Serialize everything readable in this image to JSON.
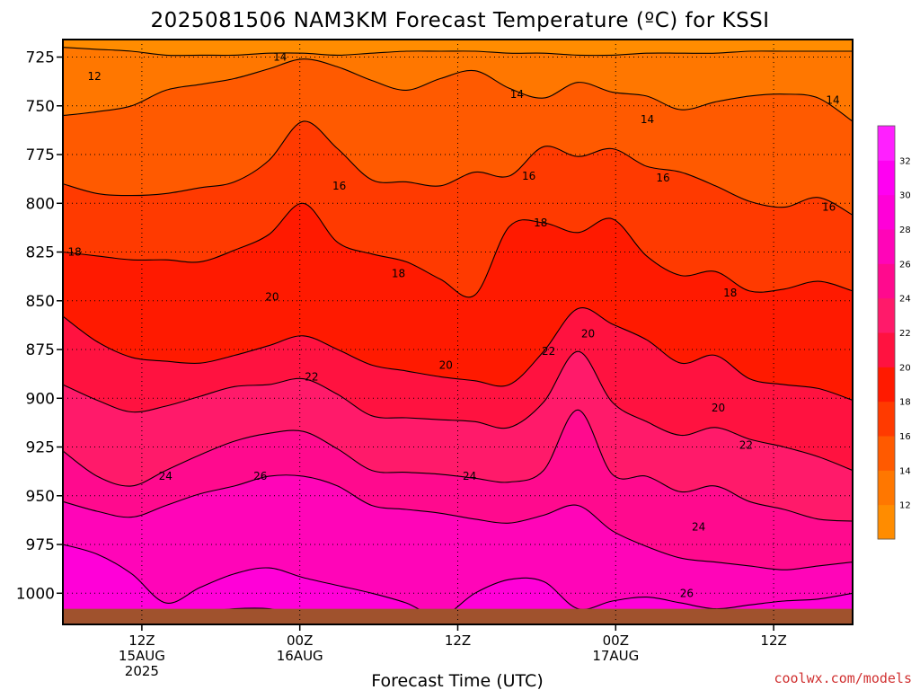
{
  "chart_data": {
    "type": "heatmap",
    "title": "2025081506 NAM3KM Forecast Temperature (ºC) for KSSI",
    "xlabel": "Forecast Time (UTC)",
    "ylabel": "",
    "y_axis": {
      "unit": "hPa",
      "reversed": true,
      "range": [
        1016,
        716
      ],
      "ticks": [
        725,
        750,
        775,
        800,
        825,
        850,
        875,
        900,
        925,
        950,
        975,
        1000
      ]
    },
    "x_axis": {
      "range_hours": [
        -10,
        90
      ],
      "ticks": [
        {
          "hour": 0,
          "lines": [
            "12Z",
            "15AUG",
            "2025"
          ]
        },
        {
          "hour": 20,
          "lines": [
            "00Z",
            "16AUG"
          ]
        },
        {
          "hour": 40,
          "lines": [
            "12Z"
          ]
        },
        {
          "hour": 60,
          "lines": [
            "00Z",
            "17AUG"
          ]
        },
        {
          "hour": 80,
          "lines": [
            "12Z"
          ]
        }
      ]
    },
    "grid": "dotted at major ticks",
    "colorbar": {
      "position": "right",
      "levels": [
        12,
        14,
        16,
        18,
        20,
        22,
        24,
        26,
        28,
        30,
        32
      ],
      "colors": [
        "#ff8c00",
        "#ff7700",
        "#ff5a00",
        "#ff3a00",
        "#ff1a00",
        "#ff1240",
        "#ff1a6a",
        "#ff0a8e",
        "#ff05b8",
        "#ff00d8",
        "#ff00f2",
        "#ff20ff"
      ]
    },
    "contours": [
      {
        "value": 12,
        "p": [
          720,
          721,
          722,
          724,
          724,
          724,
          723,
          723,
          724,
          723,
          722,
          722,
          722,
          723,
          723,
          724,
          724,
          723,
          723,
          723,
          722,
          722,
          722,
          722
        ]
      },
      {
        "value": 14,
        "p": [
          755,
          753,
          750,
          742,
          739,
          736,
          731,
          726,
          730,
          737,
          742,
          736,
          732,
          741,
          746,
          738,
          743,
          745,
          752,
          748,
          745,
          744,
          746,
          758
        ]
      },
      {
        "value": 16,
        "p": [
          790,
          795,
          796,
          795,
          792,
          789,
          778,
          758,
          772,
          788,
          789,
          791,
          784,
          786,
          771,
          776,
          772,
          781,
          784,
          791,
          799,
          802,
          797,
          806
        ]
      },
      {
        "value": 18,
        "p": [
          825,
          827,
          829,
          829,
          830,
          824,
          816,
          800,
          820,
          826,
          830,
          839,
          847,
          812,
          810,
          815,
          808,
          827,
          837,
          835,
          845,
          844,
          840,
          845
        ]
      },
      {
        "value": 20,
        "p": [
          858,
          871,
          879,
          881,
          882,
          878,
          873,
          868,
          875,
          883,
          886,
          889,
          891,
          893,
          876,
          854,
          862,
          870,
          882,
          878,
          890,
          893,
          895,
          901
        ]
      },
      {
        "value": 22,
        "p": [
          893,
          901,
          907,
          904,
          899,
          894,
          893,
          890,
          898,
          909,
          910,
          911,
          912,
          915,
          902,
          876,
          902,
          912,
          919,
          915,
          921,
          925,
          930,
          937
        ]
      },
      {
        "value": 24,
        "p": [
          927,
          940,
          945,
          937,
          929,
          922,
          918,
          917,
          926,
          937,
          938,
          939,
          941,
          943,
          937,
          906,
          939,
          940,
          948,
          945,
          953,
          957,
          962,
          963
        ]
      },
      {
        "value": 26,
        "p": [
          953,
          958,
          961,
          955,
          949,
          945,
          940,
          940,
          945,
          955,
          957,
          959,
          962,
          964,
          960,
          955,
          968,
          976,
          982,
          984,
          986,
          988,
          986,
          984
        ]
      },
      {
        "value": 28,
        "p": [
          975,
          980,
          990,
          1005,
          997,
          990,
          987,
          992,
          996,
          1000,
          1005,
          1012,
          1000,
          993,
          994,
          1008,
          1004,
          1002,
          1005,
          1008,
          1006,
          1004,
          1003,
          1000
        ]
      },
      {
        "value": 30,
        "p": [
          1016,
          1016,
          1016,
          1012,
          1010,
          1008,
          1008,
          1012,
          1016,
          1016,
          1016,
          1016,
          1016,
          1010,
          1016,
          1016,
          1016,
          1016,
          1016,
          1016,
          1016,
          1016,
          1016,
          1016
        ]
      }
    ],
    "contour_labels": [
      {
        "text": "12",
        "hour": -6,
        "p": 735
      },
      {
        "text": "14",
        "hour": 17.5,
        "p": 725
      },
      {
        "text": "14",
        "hour": 47.5,
        "p": 744
      },
      {
        "text": "14",
        "hour": 64,
        "p": 757
      },
      {
        "text": "14",
        "hour": 87.5,
        "p": 747
      },
      {
        "text": "16",
        "hour": 25,
        "p": 791
      },
      {
        "text": "16",
        "hour": 49,
        "p": 786
      },
      {
        "text": "16",
        "hour": 66,
        "p": 787
      },
      {
        "text": "16",
        "hour": 87,
        "p": 802
      },
      {
        "text": "18",
        "hour": -8.5,
        "p": 825
      },
      {
        "text": "18",
        "hour": 32.5,
        "p": 836
      },
      {
        "text": "18",
        "hour": 50.5,
        "p": 810
      },
      {
        "text": "18",
        "hour": 74.5,
        "p": 846
      },
      {
        "text": "20",
        "hour": 16.5,
        "p": 848
      },
      {
        "text": "20",
        "hour": 56.5,
        "p": 867
      },
      {
        "text": "20",
        "hour": 38.5,
        "p": 883
      },
      {
        "text": "20",
        "hour": 73,
        "p": 905
      },
      {
        "text": "22",
        "hour": 21.5,
        "p": 889
      },
      {
        "text": "22",
        "hour": 51.5,
        "p": 876
      },
      {
        "text": "22",
        "hour": 76.5,
        "p": 924
      },
      {
        "text": "24",
        "hour": 3,
        "p": 940
      },
      {
        "text": "24",
        "hour": 41.5,
        "p": 940
      },
      {
        "text": "24",
        "hour": 70.5,
        "p": 966
      },
      {
        "text": "26",
        "hour": 15,
        "p": 940
      },
      {
        "text": "26",
        "hour": 69,
        "p": 1000
      }
    ],
    "surface": {
      "color": "#a0522d",
      "p": 1008
    }
  },
  "credit": "coolwx.com/models"
}
